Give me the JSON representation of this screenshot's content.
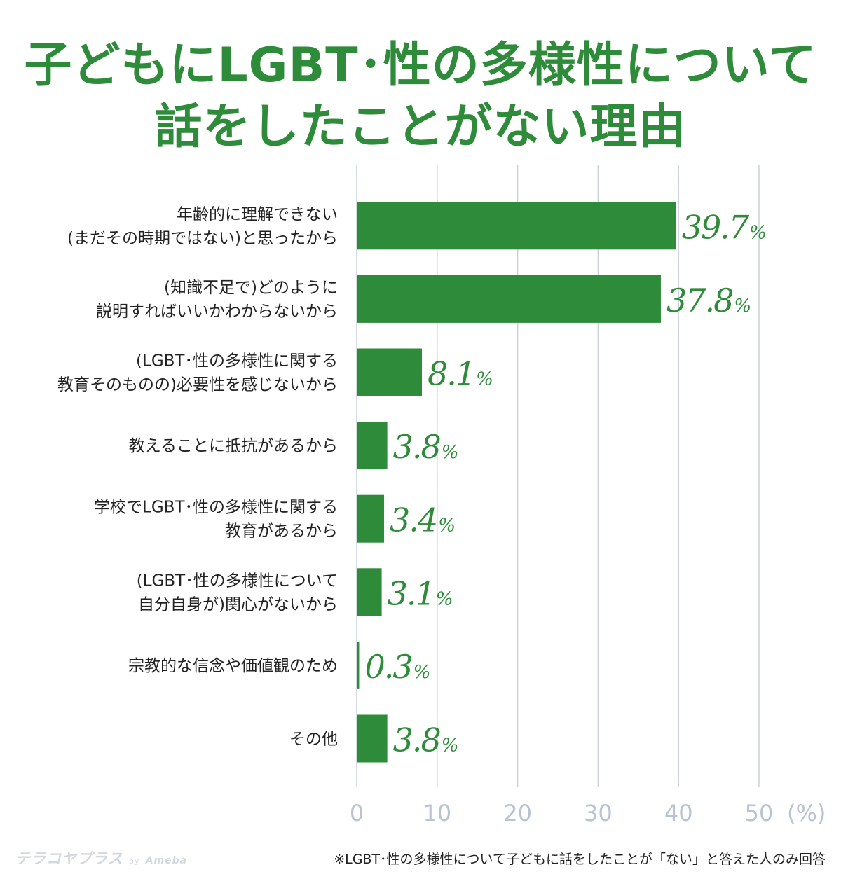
{
  "title_lines": [
    "子どもにLGBT･性の多様性について",
    "話をしたことがない理由"
  ],
  "footnote": "※LGBT･性の多様性について子どもに話をしたことが「ない」と答えた人のみ回答",
  "logo": {
    "main": "テラコヤプラス",
    "by": "by",
    "brand": "Ameba"
  },
  "colors": {
    "title": "#2e8b3a",
    "bar": "#2e8b3a",
    "grid": "#c9d0dc",
    "tick": "#b9c3d1",
    "text": "#222222"
  },
  "chart_data": {
    "type": "bar",
    "orientation": "horizontal",
    "title": "子どもにLGBT･性の多様性について話をしたことがない理由",
    "categories": [
      [
        "年齢的に理解できない",
        "(まだその時期ではない)と思ったから"
      ],
      [
        "(知識不足で)どのように",
        "説明すればいいかわからないから"
      ],
      [
        "(LGBT･性の多様性に関する",
        "教育そのものの)必要性を感じないから"
      ],
      [
        "教えることに抵抗があるから"
      ],
      [
        "学校でLGBT･性の多様性に関する",
        "教育があるから"
      ],
      [
        "(LGBT･性の多様性について",
        "自分自身が)関心がないから"
      ],
      [
        "宗教的な信念や価値観のため"
      ],
      [
        "その他"
      ]
    ],
    "values": [
      39.7,
      37.8,
      8.1,
      3.8,
      3.4,
      3.1,
      0.3,
      3.8
    ],
    "value_labels": [
      "39.7",
      "37.8",
      "8.1",
      "3.8",
      "3.4",
      "3.1",
      "0.3",
      "3.8"
    ],
    "value_unit": "%",
    "xlim": [
      0,
      50
    ],
    "xticks": [
      "0",
      "10",
      "20",
      "30",
      "40",
      "50"
    ],
    "xunit": "(%)",
    "grid": true
  }
}
